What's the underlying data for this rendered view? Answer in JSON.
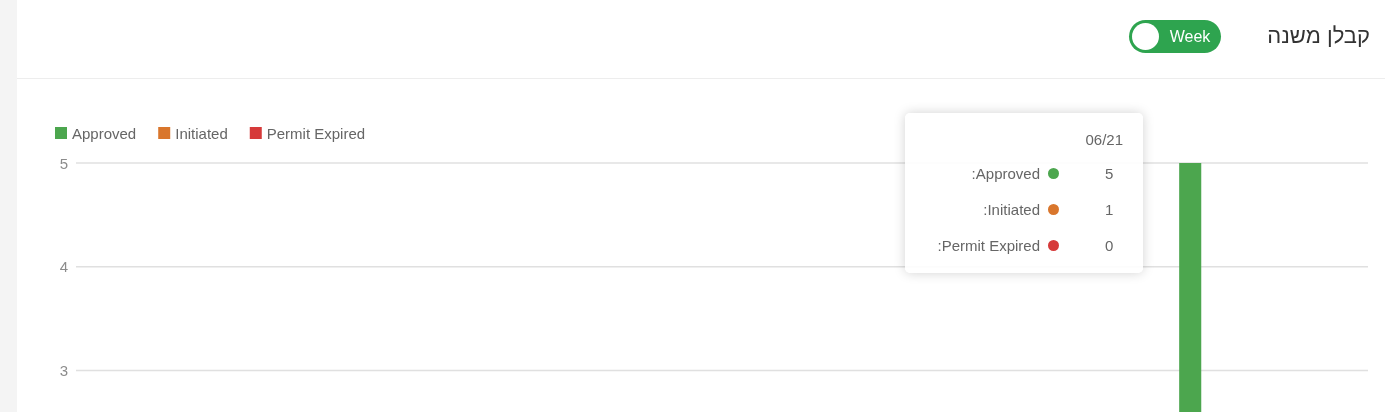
{
  "chart_data": {
    "type": "bar",
    "title": "קבלן משנה",
    "annotations": [
      "Week",
      "06/21",
      "Approved:",
      "5",
      "Initiated:",
      "1",
      "Permit Expired:",
      "0"
    ],
    "categories": [
      null,
      null,
      null,
      null,
      null,
      null,
      null,
      null,
      null,
      null,
      null,
      null,
      null
    ],
    "series": [
      {
        "name": "Approved",
        "color": "#4ca64e",
        "values": [
          null,
          null,
          null,
          null,
          null,
          null,
          null,
          null,
          null,
          null,
          null,
          5,
          null
        ]
      },
      {
        "name": "Initiated",
        "color": "#d9762c",
        "values": [
          null,
          null,
          null,
          null,
          null,
          null,
          null,
          null,
          null,
          null,
          null,
          null,
          null
        ]
      },
      {
        "name": "Permit Expired",
        "color": "#d63a3a",
        "values": [
          null,
          null,
          null,
          null,
          null,
          null,
          null,
          null,
          null,
          null,
          null,
          null,
          null
        ]
      }
    ],
    "ylim": [
      2.6,
      5
    ],
    "yticks": [
      3,
      4,
      5
    ],
    "grid": "y",
    "legend": "top left"
  }
}
